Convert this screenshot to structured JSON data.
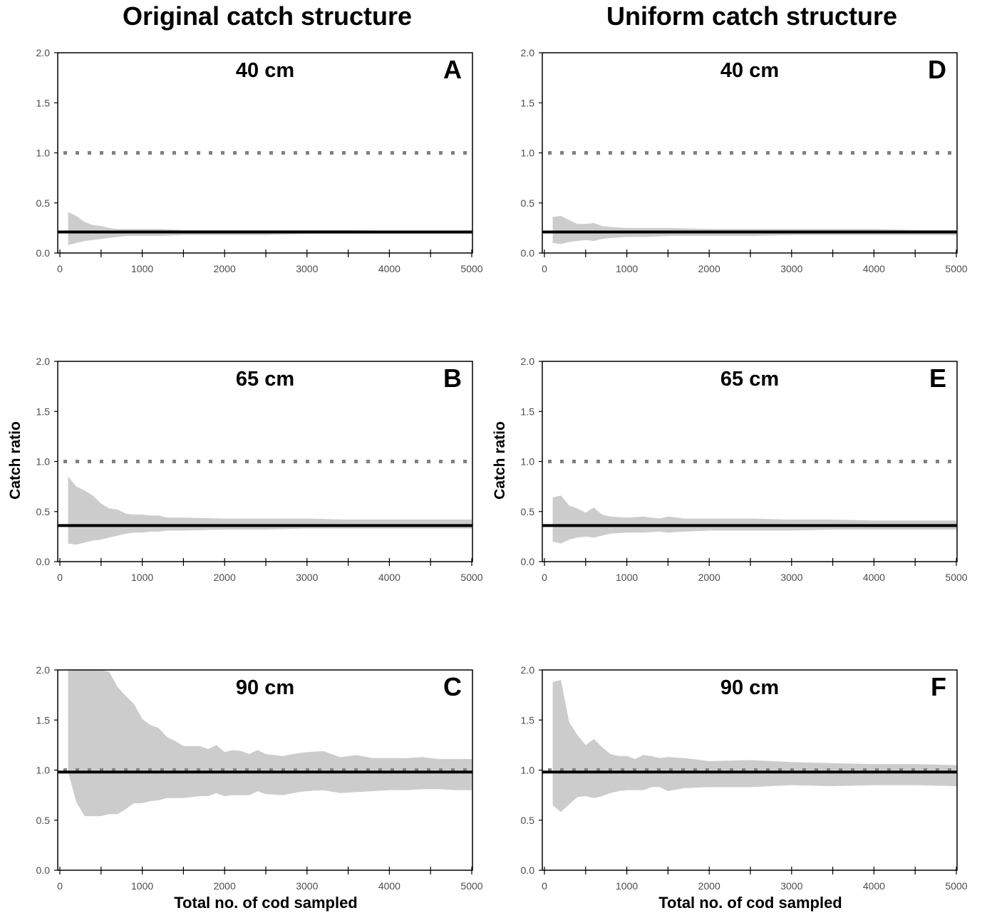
{
  "figure": {
    "col_titles": [
      "Original catch structure",
      "Uniform catch structure"
    ],
    "ylabel": "Catch ratio",
    "xlabel": "Total no. of cod sampled",
    "colors": {
      "band": "#cccccc",
      "line": "#000000",
      "reference": "#808080"
    }
  },
  "chart_data": [
    {
      "type": "area",
      "panel_letter": "A",
      "size_label": "40 cm",
      "xlim": [
        0,
        5000
      ],
      "ylim": [
        0,
        2
      ],
      "x_ticks": [
        0,
        1000,
        2000,
        3000,
        4000,
        5000
      ],
      "y_ticks": [
        "0.0",
        "0.5",
        "1.0",
        "1.5",
        "2.0"
      ],
      "reference_line": 1.0,
      "mean": 0.21,
      "band_x": [
        100,
        200,
        300,
        400,
        500,
        600,
        700,
        800,
        1000,
        1200,
        1500,
        2000,
        2500,
        3000,
        3500,
        4000,
        4500,
        5000
      ],
      "band_upper": [
        0.41,
        0.37,
        0.31,
        0.28,
        0.27,
        0.25,
        0.24,
        0.24,
        0.24,
        0.24,
        0.23,
        0.23,
        0.23,
        0.23,
        0.23,
        0.22,
        0.22,
        0.22
      ],
      "band_lower": [
        0.08,
        0.1,
        0.12,
        0.13,
        0.14,
        0.15,
        0.16,
        0.17,
        0.17,
        0.17,
        0.18,
        0.18,
        0.18,
        0.19,
        0.19,
        0.19,
        0.19,
        0.19
      ]
    },
    {
      "type": "area",
      "panel_letter": "B",
      "size_label": "65 cm",
      "xlim": [
        0,
        5000
      ],
      "ylim": [
        0,
        2
      ],
      "x_ticks": [
        0,
        1000,
        2000,
        3000,
        4000,
        5000
      ],
      "y_ticks": [
        "0.0",
        "0.5",
        "1.0",
        "1.5",
        "2.0"
      ],
      "reference_line": 1.0,
      "mean": 0.36,
      "band_x": [
        100,
        200,
        300,
        400,
        500,
        600,
        700,
        800,
        900,
        1000,
        1100,
        1200,
        1300,
        1500,
        2000,
        2500,
        3000,
        3500,
        4000,
        4500,
        5000
      ],
      "band_upper": [
        0.85,
        0.75,
        0.71,
        0.66,
        0.58,
        0.53,
        0.52,
        0.48,
        0.47,
        0.47,
        0.46,
        0.46,
        0.44,
        0.44,
        0.43,
        0.43,
        0.43,
        0.42,
        0.42,
        0.42,
        0.42
      ],
      "band_lower": [
        0.18,
        0.17,
        0.19,
        0.21,
        0.22,
        0.24,
        0.26,
        0.28,
        0.29,
        0.29,
        0.3,
        0.3,
        0.31,
        0.31,
        0.32,
        0.32,
        0.33,
        0.33,
        0.33,
        0.33,
        0.33
      ]
    },
    {
      "type": "area",
      "panel_letter": "C",
      "size_label": "90 cm",
      "xlim": [
        0,
        5000
      ],
      "ylim": [
        0,
        2
      ],
      "x_ticks": [
        0,
        1000,
        2000,
        3000,
        4000,
        5000
      ],
      "y_ticks": [
        "0.0",
        "0.5",
        "1.0",
        "1.5",
        "2.0"
      ],
      "reference_line": 1.0,
      "mean": 0.98,
      "band_x": [
        100,
        200,
        300,
        400,
        500,
        600,
        700,
        800,
        900,
        1000,
        1100,
        1200,
        1300,
        1400,
        1500,
        1600,
        1700,
        1800,
        1900,
        2000,
        2100,
        2200,
        2300,
        2400,
        2500,
        2700,
        2900,
        3000,
        3200,
        3400,
        3600,
        3800,
        4000,
        4200,
        4400,
        4600,
        4800,
        5000
      ],
      "band_upper": [
        2.0,
        2.0,
        2.0,
        2.0,
        2.0,
        1.98,
        1.83,
        1.74,
        1.66,
        1.51,
        1.45,
        1.42,
        1.33,
        1.29,
        1.24,
        1.24,
        1.24,
        1.21,
        1.25,
        1.18,
        1.2,
        1.19,
        1.16,
        1.2,
        1.16,
        1.14,
        1.17,
        1.18,
        1.19,
        1.13,
        1.15,
        1.12,
        1.12,
        1.12,
        1.13,
        1.11,
        1.11,
        1.11
      ],
      "band_lower": [
        0.98,
        0.68,
        0.54,
        0.54,
        0.54,
        0.56,
        0.56,
        0.61,
        0.67,
        0.67,
        0.69,
        0.7,
        0.72,
        0.72,
        0.72,
        0.73,
        0.74,
        0.74,
        0.77,
        0.74,
        0.75,
        0.75,
        0.75,
        0.79,
        0.76,
        0.75,
        0.78,
        0.79,
        0.8,
        0.77,
        0.78,
        0.79,
        0.8,
        0.8,
        0.81,
        0.81,
        0.8,
        0.8
      ]
    },
    {
      "type": "area",
      "panel_letter": "D",
      "size_label": "40 cm",
      "xlim": [
        0,
        5000
      ],
      "ylim": [
        0,
        2
      ],
      "x_ticks": [
        0,
        1000,
        2000,
        3000,
        4000,
        5000
      ],
      "y_ticks": [
        "0.0",
        "0.5",
        "1.0",
        "1.5",
        "2.0"
      ],
      "reference_line": 1.0,
      "mean": 0.21,
      "band_x": [
        100,
        200,
        300,
        400,
        500,
        600,
        700,
        800,
        1000,
        1200,
        1500,
        2000,
        2500,
        3000,
        3500,
        4000,
        4500,
        5000
      ],
      "band_upper": [
        0.36,
        0.37,
        0.33,
        0.29,
        0.29,
        0.3,
        0.27,
        0.26,
        0.25,
        0.25,
        0.25,
        0.24,
        0.24,
        0.24,
        0.24,
        0.24,
        0.23,
        0.23
      ],
      "band_lower": [
        0.1,
        0.09,
        0.11,
        0.12,
        0.13,
        0.12,
        0.14,
        0.15,
        0.16,
        0.16,
        0.17,
        0.17,
        0.17,
        0.18,
        0.18,
        0.18,
        0.18,
        0.18
      ]
    },
    {
      "type": "area",
      "panel_letter": "E",
      "size_label": "65 cm",
      "xlim": [
        0,
        5000
      ],
      "ylim": [
        0,
        2
      ],
      "x_ticks": [
        0,
        1000,
        2000,
        3000,
        4000,
        5000
      ],
      "y_ticks": [
        "0.0",
        "0.5",
        "1.0",
        "1.5",
        "2.0"
      ],
      "reference_line": 1.0,
      "mean": 0.36,
      "band_x": [
        100,
        200,
        300,
        400,
        500,
        600,
        700,
        800,
        1000,
        1200,
        1400,
        1500,
        1700,
        2000,
        2500,
        3000,
        3500,
        4000,
        4500,
        5000
      ],
      "band_upper": [
        0.64,
        0.66,
        0.56,
        0.53,
        0.49,
        0.54,
        0.47,
        0.45,
        0.44,
        0.45,
        0.43,
        0.45,
        0.43,
        0.43,
        0.43,
        0.42,
        0.42,
        0.41,
        0.41,
        0.41
      ],
      "band_lower": [
        0.2,
        0.18,
        0.22,
        0.24,
        0.25,
        0.24,
        0.26,
        0.28,
        0.29,
        0.29,
        0.3,
        0.29,
        0.3,
        0.31,
        0.31,
        0.31,
        0.32,
        0.32,
        0.32,
        0.32
      ]
    },
    {
      "type": "area",
      "panel_letter": "F",
      "size_label": "90 cm",
      "xlim": [
        0,
        5000
      ],
      "ylim": [
        0,
        2
      ],
      "x_ticks": [
        0,
        1000,
        2000,
        3000,
        4000,
        5000
      ],
      "y_ticks": [
        "0.0",
        "0.5",
        "1.0",
        "1.5",
        "2.0"
      ],
      "reference_line": 1.0,
      "mean": 0.98,
      "band_x": [
        100,
        200,
        300,
        400,
        500,
        600,
        700,
        800,
        900,
        1000,
        1100,
        1200,
        1300,
        1400,
        1500,
        1700,
        2000,
        2500,
        3000,
        3500,
        4000,
        4500,
        5000
      ],
      "band_upper": [
        1.88,
        1.9,
        1.48,
        1.35,
        1.25,
        1.31,
        1.23,
        1.16,
        1.14,
        1.14,
        1.11,
        1.15,
        1.14,
        1.12,
        1.13,
        1.12,
        1.09,
        1.1,
        1.08,
        1.07,
        1.06,
        1.06,
        1.05
      ],
      "band_lower": [
        0.65,
        0.58,
        0.66,
        0.73,
        0.74,
        0.72,
        0.74,
        0.77,
        0.79,
        0.8,
        0.8,
        0.8,
        0.83,
        0.83,
        0.79,
        0.82,
        0.83,
        0.83,
        0.85,
        0.84,
        0.85,
        0.85,
        0.84
      ]
    }
  ]
}
